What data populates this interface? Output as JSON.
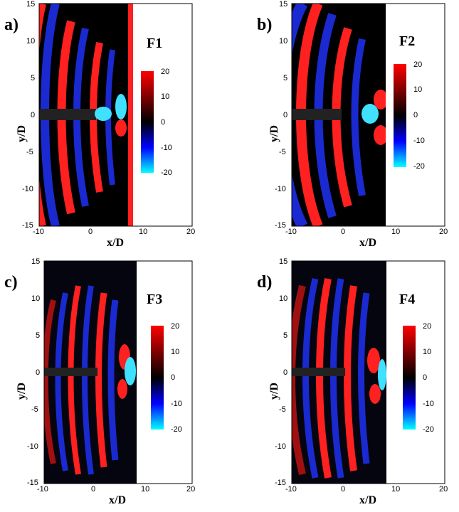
{
  "panels": [
    {
      "letter": "a)",
      "field": "F1"
    },
    {
      "letter": "b)",
      "field": "F2"
    },
    {
      "letter": "c)",
      "field": "F3"
    },
    {
      "letter": "d)",
      "field": "F4"
    }
  ],
  "axes": {
    "xlabel": "x/D",
    "ylabel": "y/D",
    "xticks": [
      "-10",
      "0",
      "10",
      "20"
    ],
    "yticks": [
      "15",
      "10",
      "5",
      "0",
      "-5",
      "-10",
      "-15"
    ]
  },
  "colorbar": {
    "ticks": [
      "20",
      "10",
      "0",
      "-10",
      "-20"
    ],
    "colors": {
      "max": "#ff0000",
      "mid": "#000000",
      "min": "#00ffff",
      "neg": "#0000ff"
    }
  }
}
